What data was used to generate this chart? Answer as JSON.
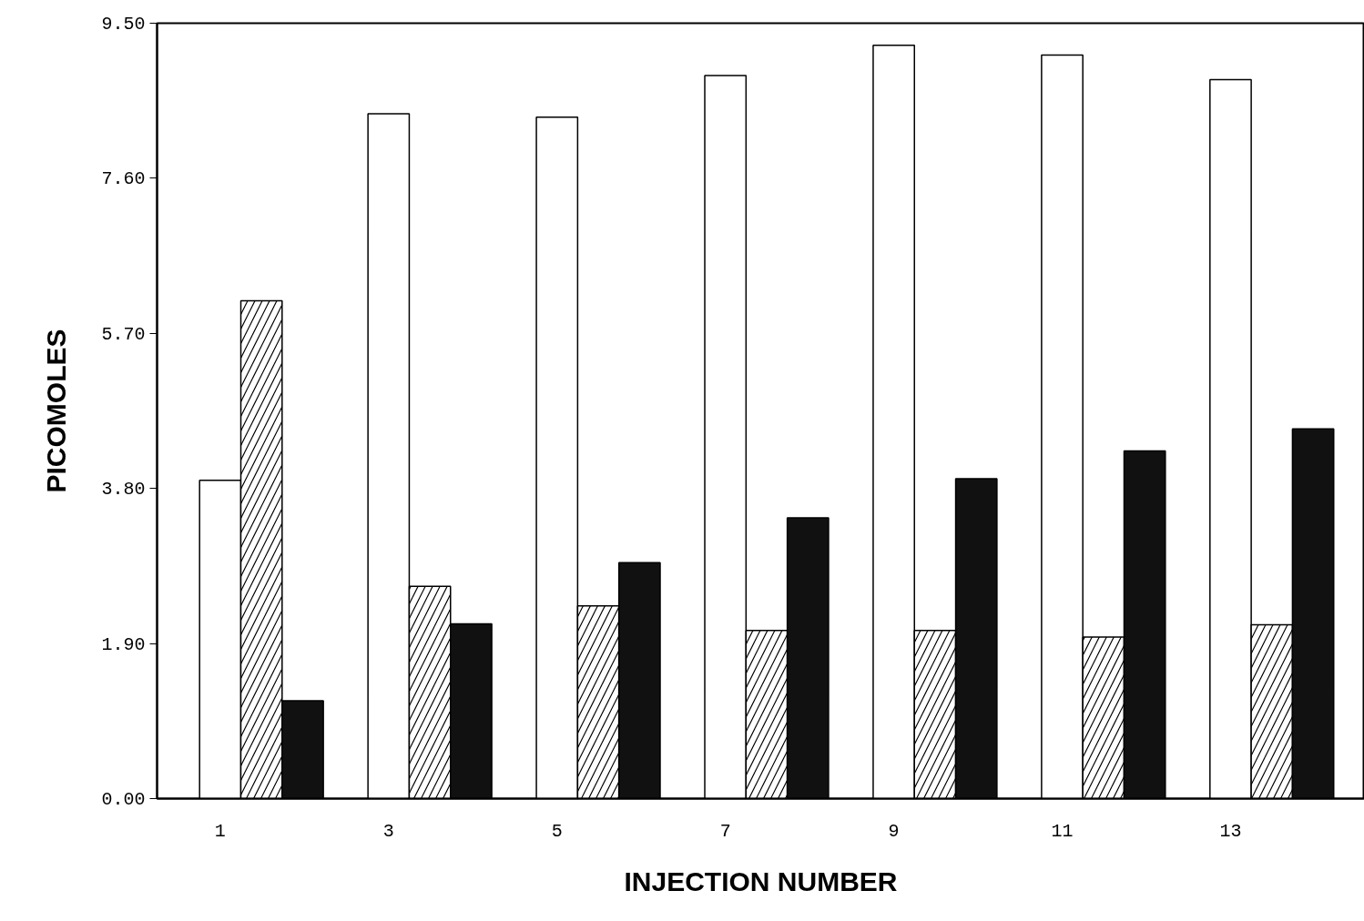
{
  "chart_data": {
    "type": "bar",
    "xlabel": "INJECTION NUMBER",
    "ylabel": "PICOMOLES",
    "categories": [
      "1",
      "3",
      "5",
      "7",
      "9",
      "11",
      "13"
    ],
    "series": [
      {
        "color": "#ffffff",
        "values": [
          3.9,
          8.39,
          8.35,
          8.86,
          9.23,
          9.11,
          8.81
        ]
      },
      {
        "color": "#ffffff",
        "values": [
          6.1,
          2.6,
          2.36,
          2.06,
          2.06,
          1.98,
          2.13
        ]
      },
      {
        "color": "#111111",
        "values": [
          1.2,
          2.14,
          2.89,
          3.44,
          3.92,
          4.26,
          4.53
        ]
      }
    ],
    "ylim": [
      0,
      9.5
    ],
    "yticks": [
      {
        "value": 0,
        "label": "0.00"
      },
      {
        "value": 1.9,
        "label": "1.90"
      },
      {
        "value": 3.8,
        "label": "3.80"
      },
      {
        "value": 5.7,
        "label": "5.70"
      },
      {
        "value": 7.6,
        "label": "7.60"
      },
      {
        "value": 9.5,
        "label": "9.50"
      }
    ],
    "grid": false
  }
}
